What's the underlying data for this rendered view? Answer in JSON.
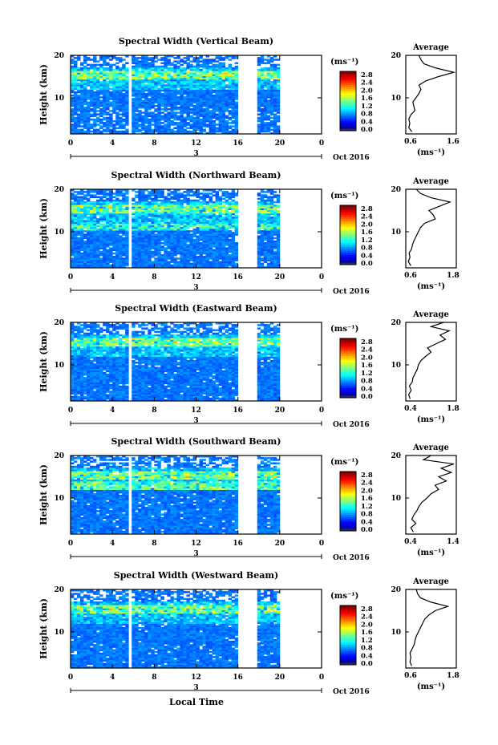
{
  "figure": {
    "bottom_label": "Local Time",
    "date_tick": "3",
    "month_label": "Oct 2016"
  },
  "chart_data": [
    {
      "type": "heatmap",
      "title": "Spectral Width (Vertical Beam)",
      "ylabel": "Height (km)",
      "xlabel": "Local Time",
      "x_ticks": [
        "0",
        "4",
        "8",
        "12",
        "16",
        "20",
        "0"
      ],
      "y_ticks": [
        "20",
        "10"
      ],
      "xlim": [
        0,
        24
      ],
      "ylim": [
        1.5,
        20
      ],
      "colorbar": {
        "unit": "(ms⁻¹)",
        "ticks": [
          "2.8",
          "2.4",
          "2.0",
          "1.6",
          "1.2",
          "0.8",
          "0.4",
          "0.0"
        ]
      },
      "data_gaps_hours": [
        [
          5.6,
          5.8
        ],
        [
          16.0,
          18.0
        ],
        [
          20.0,
          24.0
        ]
      ],
      "average_profile": {
        "title": "Average",
        "x_ticks": [
          "0.6",
          "1.6"
        ],
        "xlim": [
          0.6,
          1.6
        ],
        "xlabel": "(ms⁻¹)",
        "y_ticks": [
          "20",
          "10"
        ],
        "heights_km": [
          2,
          3,
          4,
          5,
          6,
          7,
          8,
          9,
          10,
          11,
          12,
          13,
          14,
          15,
          16,
          17,
          18,
          19,
          20
        ],
        "values": [
          0.72,
          0.66,
          0.68,
          0.66,
          0.7,
          0.78,
          0.76,
          0.74,
          0.8,
          0.86,
          0.9,
          0.86,
          1.0,
          1.25,
          1.55,
          1.2,
          0.96,
          0.9,
          0.86
        ]
      }
    },
    {
      "type": "heatmap",
      "title": "Spectral Width (Northward Beam)",
      "ylabel": "Height (km)",
      "xlabel": "Local Time",
      "x_ticks": [
        "0",
        "4",
        "8",
        "12",
        "16",
        "20",
        "0"
      ],
      "y_ticks": [
        "20",
        "10"
      ],
      "xlim": [
        0,
        24
      ],
      "ylim": [
        1.5,
        20
      ],
      "colorbar": {
        "unit": "(ms⁻¹)",
        "ticks": [
          "2.8",
          "2.4",
          "2.0",
          "1.6",
          "1.2",
          "0.8",
          "0.4",
          "0.0"
        ]
      },
      "data_gaps_hours": [
        [
          5.6,
          5.8
        ],
        [
          16.0,
          18.0
        ],
        [
          20.0,
          24.0
        ]
      ],
      "average_profile": {
        "title": "Average",
        "x_ticks": [
          "0.6",
          "1.8"
        ],
        "xlim": [
          0.6,
          1.8
        ],
        "xlabel": "(ms⁻¹)",
        "y_ticks": [
          "20",
          "10"
        ],
        "heights_km": [
          2,
          3,
          4,
          5,
          6,
          7,
          8,
          9,
          10,
          11,
          12,
          13,
          14,
          15,
          16,
          17,
          18,
          19,
          20
        ],
        "values": [
          0.72,
          0.66,
          0.7,
          0.68,
          0.74,
          0.76,
          0.8,
          0.85,
          0.9,
          0.95,
          1.05,
          1.3,
          1.25,
          1.15,
          1.4,
          1.65,
          1.2,
          0.95,
          0.85
        ]
      }
    },
    {
      "type": "heatmap",
      "title": "Spectral Width (Eastward Beam)",
      "ylabel": "Height (km)",
      "xlabel": "Local Time",
      "x_ticks": [
        "0",
        "4",
        "8",
        "12",
        "16",
        "20",
        "0"
      ],
      "y_ticks": [
        "20",
        "10"
      ],
      "xlim": [
        0,
        24
      ],
      "ylim": [
        1.5,
        20
      ],
      "colorbar": {
        "unit": "(ms⁻¹)",
        "ticks": [
          "2.8",
          "2.4",
          "2.0",
          "1.6",
          "1.2",
          "0.8",
          "0.4",
          "0.0"
        ]
      },
      "data_gaps_hours": [
        [
          5.6,
          5.8
        ],
        [
          16.0,
          18.0
        ],
        [
          20.0,
          24.0
        ]
      ],
      "average_profile": {
        "title": "Average",
        "x_ticks": [
          "0.4",
          "1.8"
        ],
        "xlim": [
          0.4,
          1.8
        ],
        "xlabel": "(ms⁻¹)",
        "y_ticks": [
          "20",
          "10"
        ],
        "heights_km": [
          2,
          3,
          4,
          5,
          6,
          7,
          8,
          9,
          10,
          11,
          12,
          13,
          14,
          15,
          16,
          17,
          18,
          19,
          20
        ],
        "values": [
          0.52,
          0.48,
          0.55,
          0.5,
          0.58,
          0.6,
          0.66,
          0.72,
          0.75,
          0.82,
          0.95,
          1.1,
          1.0,
          1.25,
          1.5,
          1.35,
          1.6,
          1.1,
          1.45
        ]
      }
    },
    {
      "type": "heatmap",
      "title": "Spectral Width (Southward Beam)",
      "ylabel": "Height (km)",
      "xlabel": "Local Time",
      "x_ticks": [
        "0",
        "4",
        "8",
        "12",
        "16",
        "20",
        "0"
      ],
      "y_ticks": [
        "20",
        "10"
      ],
      "xlim": [
        0,
        24
      ],
      "ylim": [
        1.5,
        20
      ],
      "colorbar": {
        "unit": "(ms⁻¹)",
        "ticks": [
          "2.8",
          "2.4",
          "2.0",
          "1.6",
          "1.2",
          "0.8",
          "0.4",
          "0.0"
        ]
      },
      "data_gaps_hours": [
        [
          5.6,
          5.8
        ],
        [
          16.0,
          18.0
        ],
        [
          20.0,
          24.0
        ]
      ],
      "average_profile": {
        "title": "Average",
        "x_ticks": [
          "0.4",
          "1.4"
        ],
        "xlim": [
          0.4,
          1.4
        ],
        "xlabel": "(ms⁻¹)",
        "y_ticks": [
          "20",
          "10"
        ],
        "heights_km": [
          2,
          3,
          4,
          5,
          6,
          7,
          8,
          9,
          10,
          11,
          12,
          13,
          14,
          15,
          16,
          17,
          18,
          19,
          20
        ],
        "values": [
          0.55,
          0.5,
          0.6,
          0.52,
          0.56,
          0.62,
          0.66,
          0.72,
          0.82,
          0.9,
          1.05,
          0.98,
          1.2,
          1.05,
          1.3,
          1.1,
          1.35,
          0.75,
          0.9
        ]
      }
    },
    {
      "type": "heatmap",
      "title": "Spectral Width (Westward Beam)",
      "ylabel": "Height (km)",
      "xlabel": "Local Time",
      "x_ticks": [
        "0",
        "4",
        "8",
        "12",
        "16",
        "20",
        "0"
      ],
      "y_ticks": [
        "20",
        "10"
      ],
      "xlim": [
        0,
        24
      ],
      "ylim": [
        1.5,
        20
      ],
      "colorbar": {
        "unit": "(ms⁻¹)",
        "ticks": [
          "2.8",
          "2.4",
          "2.0",
          "1.6",
          "1.2",
          "0.8",
          "0.4",
          "0.0"
        ]
      },
      "data_gaps_hours": [
        [
          5.6,
          5.8
        ],
        [
          16.0,
          18.0
        ],
        [
          20.0,
          24.0
        ]
      ],
      "average_profile": {
        "title": "Average",
        "x_ticks": [
          "0.6",
          "1.8"
        ],
        "xlim": [
          0.6,
          1.8
        ],
        "xlabel": "(ms⁻¹)",
        "y_ticks": [
          "20",
          "10"
        ],
        "heights_km": [
          2,
          3,
          4,
          5,
          6,
          7,
          8,
          9,
          10,
          11,
          12,
          13,
          14,
          15,
          16,
          17,
          18,
          19,
          20
        ],
        "values": [
          0.74,
          0.7,
          0.72,
          0.7,
          0.75,
          0.8,
          0.82,
          0.85,
          0.9,
          0.95,
          1.0,
          1.05,
          1.15,
          1.3,
          1.6,
          1.2,
          0.95,
          0.88,
          0.85
        ]
      }
    }
  ]
}
